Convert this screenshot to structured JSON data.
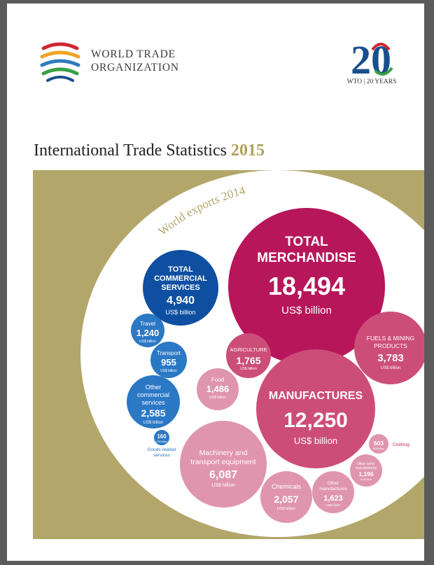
{
  "header": {
    "org_line1": "WORLD TRADE",
    "org_line2": "ORGANIZATION",
    "anniversary_number": "20",
    "anniversary_caption": "WTO | 20 YEARS"
  },
  "title": {
    "main": "International Trade Statistics",
    "year": "2015"
  },
  "arc_label": "World exports 2014",
  "unit": "US$ billion",
  "colors": {
    "gold": "#b3a66a",
    "blue_dark": "#0e4fa1",
    "blue_mid": "#2b78c5",
    "magenta": "#b7165a",
    "pink_mid": "#cd4d79",
    "pink_light": "#e095ae",
    "clothing_red": "#c0285a"
  },
  "bubbles": {
    "total_merchandise": {
      "name_line1": "TOTAL",
      "name_line2": "MERCHANDISE",
      "value": "18,494"
    },
    "total_commercial": {
      "name_line1": "TOTAL",
      "name_line2": "COMMERCIAL",
      "name_line3": "SERVICES",
      "value": "4,940"
    },
    "travel": {
      "name": "Travel",
      "value": "1,240"
    },
    "transport": {
      "name": "Transport",
      "value": "955"
    },
    "other_commercial": {
      "name_line1": "Other",
      "name_line2": "commercial",
      "name_line3": "services",
      "value": "2,585"
    },
    "goods_related": {
      "value": "160",
      "name_line1": "Goods-related",
      "name_line2": "services"
    },
    "agriculture": {
      "name": "AGRICULTURE",
      "value": "1,765"
    },
    "food": {
      "name": "Food",
      "value": "1,486"
    },
    "fuels_mining": {
      "name_line1": "FUELS & MINING",
      "name_line2": "PRODUCTS",
      "value": "3,783"
    },
    "manufactures": {
      "name": "MANUFACTURES",
      "value": "12,250"
    },
    "machinery": {
      "name_line1": "Machinery and",
      "name_line2": "transport equipment",
      "value": "6,087"
    },
    "chemicals": {
      "name": "Chemicals",
      "value": "2,057"
    },
    "other_manufactures": {
      "name_line1": "Other",
      "name_line2": "manufactures",
      "value": "1,623"
    },
    "other_semi": {
      "name_line1": "Other semi-",
      "name_line2": "manufactures",
      "value": "1,196"
    },
    "clothing": {
      "value": "503",
      "name": "Clothing"
    }
  }
}
